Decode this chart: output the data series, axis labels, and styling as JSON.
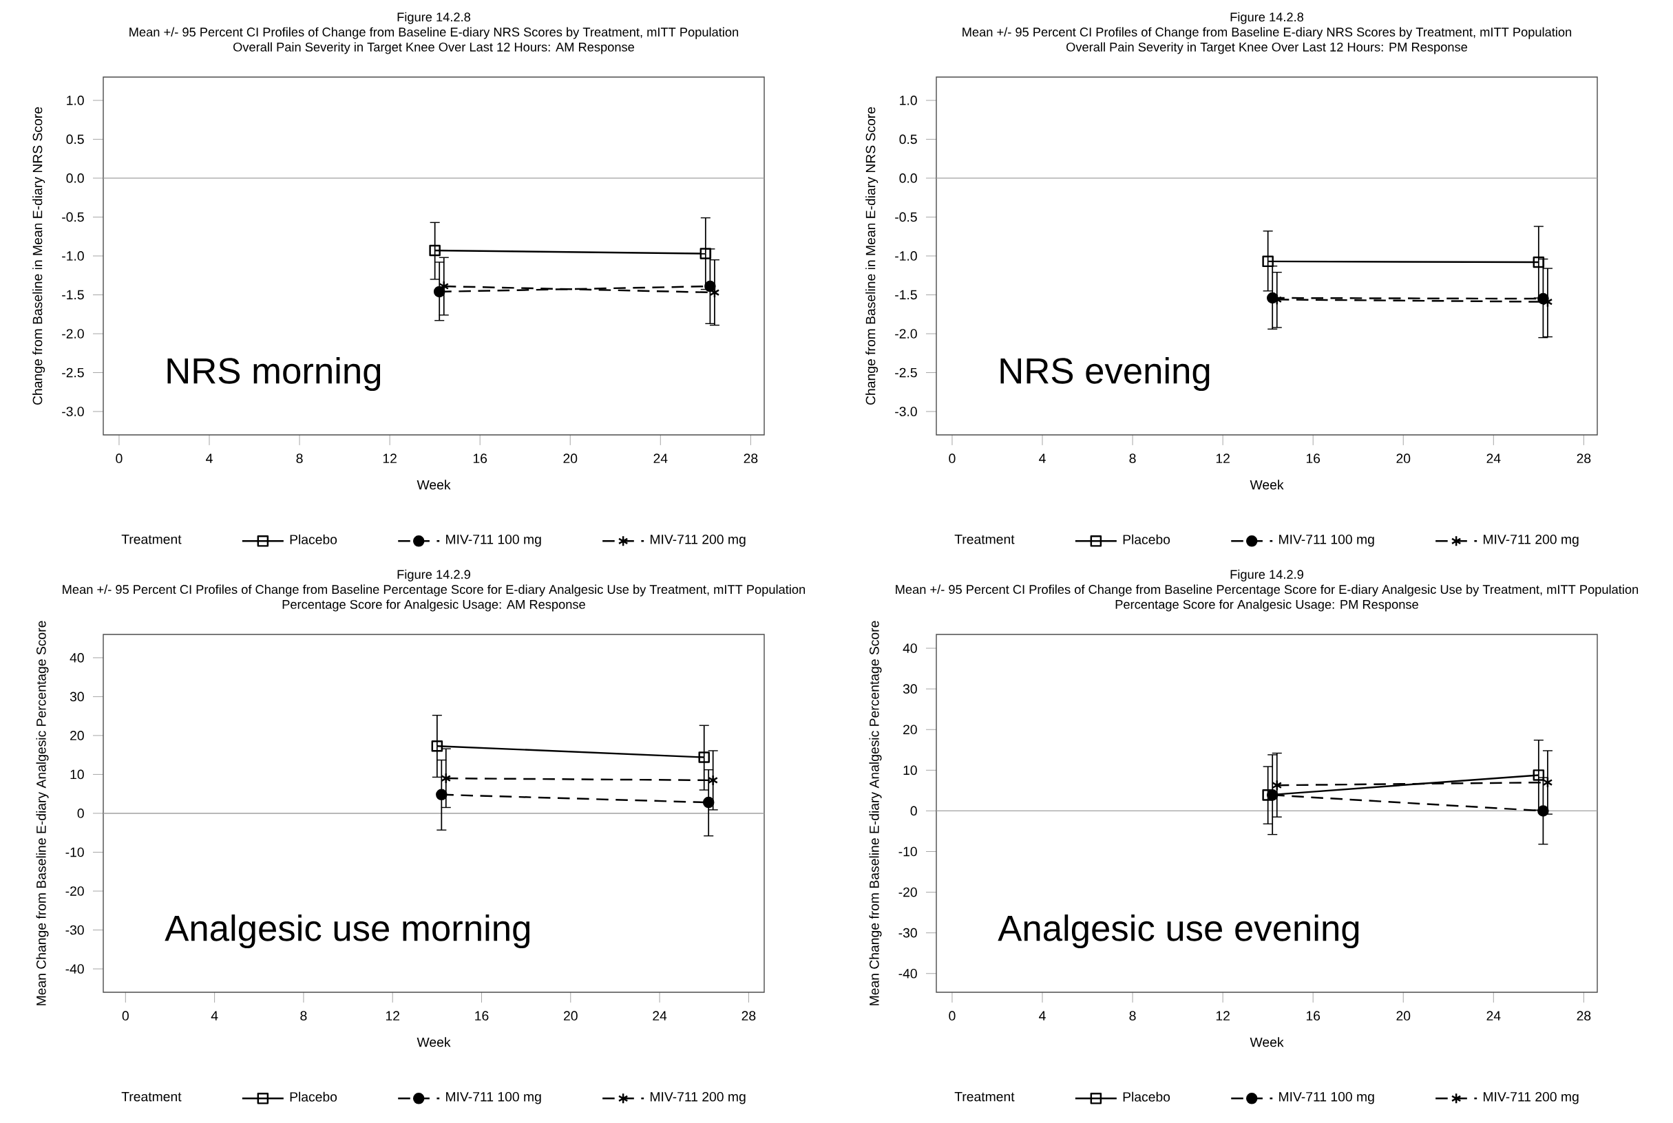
{
  "chart_data": [
    {
      "type": "line",
      "title": "Figure 14.2.8",
      "subtitle": "Mean +/- 95 Percent CI Profiles of Change from Baseline E-diary NRS Scores by Treatment, mITT Population",
      "annotations": [
        "Overall Pain Severity in Target Knee Over Last 12 Hours: AM Response",
        "NRS morning"
      ],
      "xlabel": "Week",
      "ylabel": "Change from Baseline in Mean E-diary NRS Score",
      "legend_title": "Treatment",
      "legend": "bottom",
      "xlim": [
        -0.7,
        28.6
      ],
      "ylim": [
        -3.3,
        1.3
      ],
      "xticks": [
        0,
        4,
        8,
        12,
        16,
        20,
        24,
        28
      ],
      "yticks": [
        {
          "value": 1.0,
          "label": "1.0"
        },
        {
          "value": 0.5,
          "label": "0.5"
        },
        {
          "value": 0.0,
          "label": "0.0"
        },
        {
          "value": -0.5,
          "label": "-0.5"
        },
        {
          "value": -1.0,
          "label": "-1.0"
        },
        {
          "value": -1.5,
          "label": "-1.5"
        },
        {
          "value": -2.0,
          "label": "-2.0"
        },
        {
          "value": -2.5,
          "label": "-2.5"
        },
        {
          "value": -3.0,
          "label": "-3.0"
        }
      ],
      "ref_lines": [
        {
          "axis": "y",
          "value": 0,
          "color": "#a0a0a0"
        }
      ],
      "series": [
        {
          "name": "Placebo",
          "color": "#000000",
          "marker": "square",
          "line_style": "solid",
          "x": [
            14,
            26
          ],
          "values": [
            -0.93,
            -0.97
          ],
          "errors": [
            [
              -1.3,
              -0.57
            ],
            [
              -1.43,
              -0.51
            ]
          ]
        },
        {
          "name": "MIV-711 100 mg",
          "color": "#000000",
          "marker": "circle",
          "line_style": "dashed",
          "x": [
            14.2,
            26.2
          ],
          "values": [
            -1.46,
            -1.39
          ],
          "errors": [
            [
              -1.83,
              -1.08
            ],
            [
              -1.87,
              -0.91
            ]
          ]
        },
        {
          "name": "MIV-711 200 mg",
          "color": "#000000",
          "marker": "cross",
          "line_style": "dashed",
          "x": [
            14.4,
            26.4
          ],
          "values": [
            -1.39,
            -1.47
          ],
          "errors": [
            [
              -1.76,
              -1.02
            ],
            [
              -1.89,
              -1.05
            ]
          ]
        }
      ]
    },
    {
      "type": "line",
      "title": "Figure 14.2.8",
      "subtitle": "Mean +/- 95 Percent CI Profiles of Change from Baseline E-diary NRS Scores by Treatment, mITT Population",
      "annotations": [
        "Overall Pain Severity in Target Knee Over Last 12 Hours: PM Response",
        "NRS evening"
      ],
      "xlabel": "Week",
      "ylabel": "Change from Baseline in Mean E-diary NRS Score",
      "legend_title": "Treatment",
      "legend": "bottom",
      "xlim": [
        -0.7,
        28.6
      ],
      "ylim": [
        -3.3,
        1.3
      ],
      "xticks": [
        0,
        4,
        8,
        12,
        16,
        20,
        24,
        28
      ],
      "yticks": [
        {
          "value": 1.0,
          "label": "1.0"
        },
        {
          "value": 0.5,
          "label": "0.5"
        },
        {
          "value": 0.0,
          "label": "0.0"
        },
        {
          "value": -0.5,
          "label": "-0.5"
        },
        {
          "value": -1.0,
          "label": "-1.0"
        },
        {
          "value": -1.5,
          "label": "-1.5"
        },
        {
          "value": -2.0,
          "label": "-2.0"
        },
        {
          "value": -2.5,
          "label": "-2.5"
        },
        {
          "value": -3.0,
          "label": "-3.0"
        }
      ],
      "ref_lines": [
        {
          "axis": "y",
          "value": 0,
          "color": "#a0a0a0"
        }
      ],
      "series": [
        {
          "name": "Placebo",
          "color": "#000000",
          "marker": "square",
          "line_style": "solid",
          "x": [
            14,
            26
          ],
          "values": [
            -1.07,
            -1.08
          ],
          "errors": [
            [
              -1.45,
              -0.68
            ],
            [
              -1.54,
              -0.62
            ]
          ]
        },
        {
          "name": "MIV-711 100 mg",
          "color": "#000000",
          "marker": "circle",
          "line_style": "dashed",
          "x": [
            14.2,
            26.2
          ],
          "values": [
            -1.54,
            -1.55
          ],
          "errors": [
            [
              -1.94,
              -1.13
            ],
            [
              -2.05,
              -1.04
            ]
          ]
        },
        {
          "name": "MIV-711 200 mg",
          "color": "#000000",
          "marker": "cross",
          "line_style": "dashed",
          "x": [
            14.4,
            26.4
          ],
          "values": [
            -1.56,
            -1.59
          ],
          "errors": [
            [
              -1.92,
              -1.21
            ],
            [
              -2.04,
              -1.16
            ]
          ]
        }
      ]
    },
    {
      "type": "line",
      "title": "Figure 14.2.9",
      "subtitle": "Mean +/- 95 Percent CI Profiles of Change from Baseline Percentage Score for E-diary Analgesic Use by Treatment, mITT Population",
      "annotations": [
        "Percentage Score for Analgesic Usage: AM Response",
        "Analgesic use morning"
      ],
      "xlabel": "Week",
      "ylabel": "Mean Change from Baseline E-diary Analgesic Percentage Score",
      "legend_title": "Treatment",
      "legend": "bottom",
      "xlim": [
        -1.0,
        28.7
      ],
      "ylim": [
        -46,
        46
      ],
      "xticks": [
        0,
        4,
        8,
        12,
        16,
        20,
        24,
        28
      ],
      "yticks": [
        -40,
        -30,
        -20,
        -10,
        0,
        10,
        20,
        30,
        40
      ],
      "ref_lines": [
        {
          "axis": "y",
          "value": 0,
          "color": "#a0a0a0"
        }
      ],
      "series": [
        {
          "name": "Placebo",
          "color": "#000000",
          "marker": "square",
          "line_style": "solid",
          "x": [
            14,
            26
          ],
          "values": [
            17.3,
            14.4
          ],
          "errors": [
            [
              9.3,
              25.2
            ],
            [
              6.0,
              22.6
            ]
          ]
        },
        {
          "name": "MIV-711 100 mg",
          "color": "#000000",
          "marker": "circle",
          "line_style": "dashed",
          "x": [
            14.2,
            26.2
          ],
          "values": [
            4.8,
            2.8
          ],
          "errors": [
            [
              -4.3,
              13.7
            ],
            [
              -5.8,
              11.2
            ]
          ]
        },
        {
          "name": "MIV-711 200 mg",
          "color": "#000000",
          "marker": "cross",
          "line_style": "dashed",
          "x": [
            14.4,
            26.4
          ],
          "values": [
            9.0,
            8.5
          ],
          "errors": [
            [
              1.5,
              16.6
            ],
            [
              0.9,
              16.1
            ]
          ]
        }
      ]
    },
    {
      "type": "line",
      "title": "Figure 14.2.9",
      "subtitle": "Mean +/- 95 Percent CI Profiles of Change from Baseline Percentage Score for E-diary Analgesic Use by Treatment, mITT Population",
      "annotations": [
        "Percentage Score for Analgesic Usage: PM Response",
        "Analgesic use evening"
      ],
      "xlabel": "Week",
      "ylabel": "Mean Change from Baseline E-diary Analgesic Percentage Score",
      "legend_title": "Treatment",
      "legend": "bottom",
      "xlim": [
        -0.7,
        28.6
      ],
      "ylim": [
        -44.6,
        43.4
      ],
      "xticks": [
        0,
        4,
        8,
        12,
        16,
        20,
        24,
        28
      ],
      "yticks": [
        -40,
        -30,
        -20,
        -10,
        0,
        10,
        20,
        30,
        40
      ],
      "ref_lines": [
        {
          "axis": "y",
          "value": 0,
          "color": "#a0a0a0"
        }
      ],
      "series": [
        {
          "name": "Placebo",
          "color": "#000000",
          "marker": "square",
          "line_style": "solid",
          "x": [
            14,
            26
          ],
          "values": [
            3.9,
            8.8
          ],
          "errors": [
            [
              -3.2,
              10.9
            ],
            [
              0.2,
              17.4
            ]
          ]
        },
        {
          "name": "MIV-711 100 mg",
          "color": "#000000",
          "marker": "circle",
          "line_style": "dashed",
          "x": [
            14.2,
            26.2
          ],
          "values": [
            3.9,
            0.0
          ],
          "errors": [
            [
              -5.8,
              13.8
            ],
            [
              -8.2,
              8.2
            ]
          ]
        },
        {
          "name": "MIV-711 200 mg",
          "color": "#000000",
          "marker": "cross",
          "line_style": "dashed",
          "x": [
            14.4,
            26.4
          ],
          "values": [
            6.3,
            7.0
          ],
          "errors": [
            [
              -1.5,
              14.2
            ],
            [
              -0.8,
              14.8
            ]
          ]
        }
      ]
    }
  ]
}
